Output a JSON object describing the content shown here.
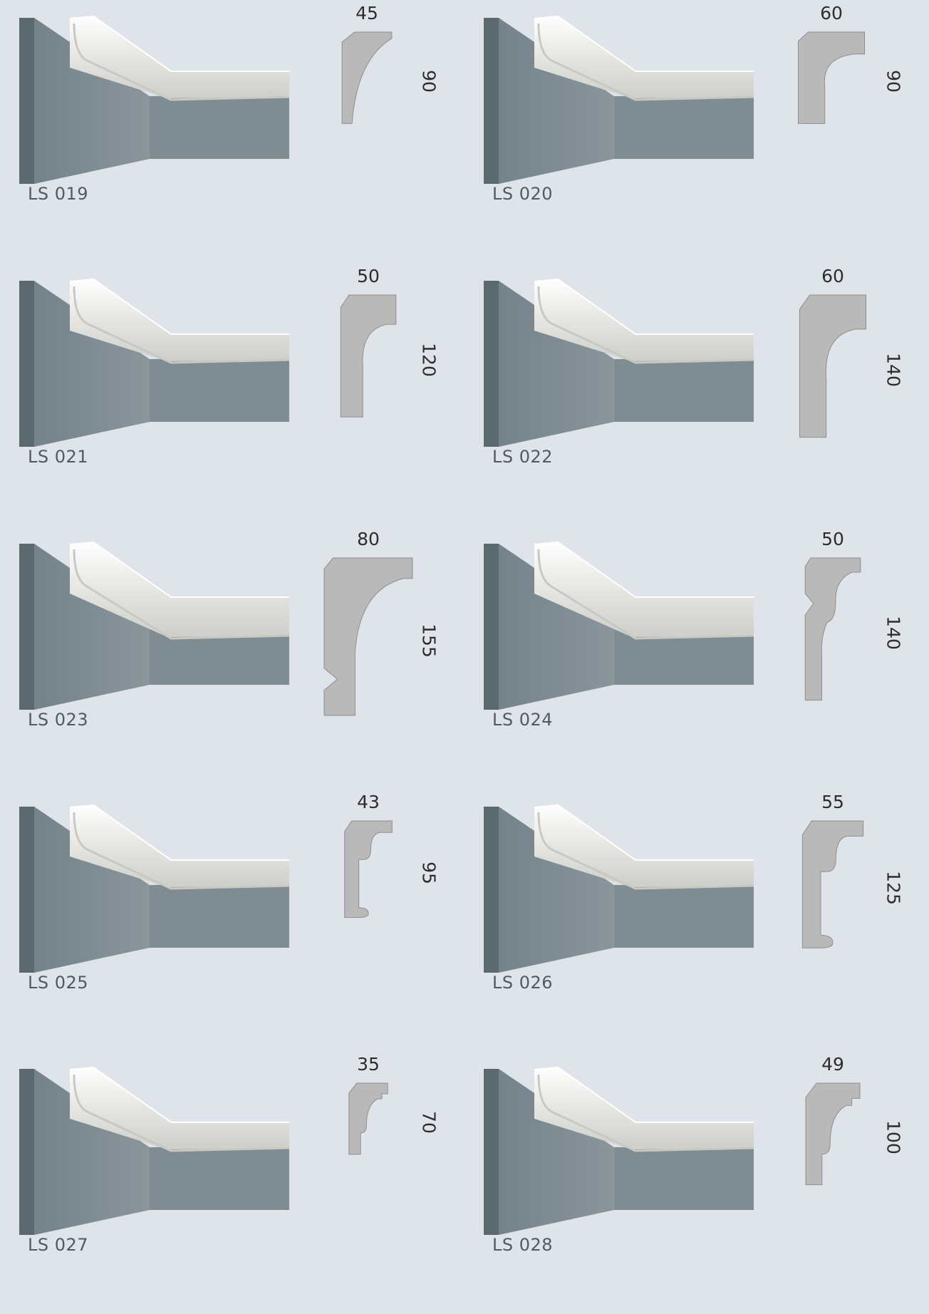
{
  "colors": {
    "background": "#dee4e9",
    "wall": "#7f8c92",
    "wall_edge": "#5b686e",
    "moulding": "#f1f1ef",
    "profile_fill": "#b9b9b9"
  },
  "products": [
    {
      "code": "LS 019",
      "width": "45",
      "height": "90",
      "profile_shape": "cove"
    },
    {
      "code": "LS 020",
      "width": "60",
      "height": "90",
      "profile_shape": "cove-lip"
    },
    {
      "code": "LS 021",
      "width": "50",
      "height": "120",
      "profile_shape": "cove-lip"
    },
    {
      "code": "LS 022",
      "width": "60",
      "height": "140",
      "profile_shape": "cove-lip"
    },
    {
      "code": "LS 023",
      "width": "80",
      "height": "155",
      "profile_shape": "cove-notch"
    },
    {
      "code": "LS 024",
      "width": "50",
      "height": "140",
      "profile_shape": "double-cove-notch"
    },
    {
      "code": "LS 025",
      "width": "43",
      "height": "95",
      "profile_shape": "ogee-bead"
    },
    {
      "code": "LS 026",
      "width": "55",
      "height": "125",
      "profile_shape": "ogee-bead"
    },
    {
      "code": "LS 027",
      "width": "35",
      "height": "70",
      "profile_shape": "stepped-cove"
    },
    {
      "code": "LS 028",
      "width": "49",
      "height": "100",
      "profile_shape": "stepped-cove"
    }
  ]
}
